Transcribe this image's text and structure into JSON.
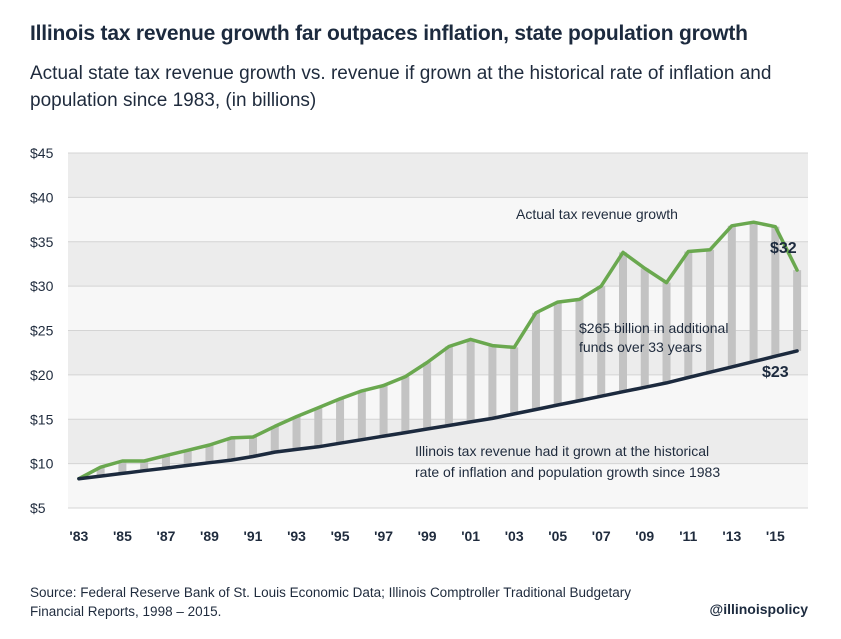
{
  "title": "Illinois tax revenue growth far outpaces inflation, state population growth",
  "subtitle": "Actual state tax revenue growth vs. revenue if grown at the historical rate of inflation and population since 1983, (in billions)",
  "source": "Source: Federal Reserve Bank of St. Louis Economic Data; Illinois Comptroller Traditional Budgetary Financial Reports, 1998 – 2015.",
  "handle": "@illinoispolicy",
  "chart_data": {
    "type": "line",
    "x": [
      1983,
      1984,
      1985,
      1986,
      1987,
      1988,
      1989,
      1990,
      1991,
      1992,
      1993,
      1994,
      1995,
      1996,
      1997,
      1998,
      1999,
      2000,
      2001,
      2002,
      2003,
      2004,
      2005,
      2006,
      2007,
      2008,
      2009,
      2010,
      2011,
      2012,
      2013,
      2014,
      2015,
      2016
    ],
    "x_tick_labels": [
      "'83",
      "'85",
      "'87",
      "'89",
      "'91",
      "'93",
      "'95",
      "'97",
      "'99",
      "'01",
      "'03",
      "'05",
      "'07",
      "'09",
      "'11",
      "'13",
      "'15"
    ],
    "x_tick_years": [
      1983,
      1985,
      1987,
      1989,
      1991,
      1993,
      1995,
      1997,
      1999,
      2001,
      2003,
      2005,
      2007,
      2009,
      2011,
      2013,
      2015
    ],
    "y_ticks": [
      "$5",
      "$10",
      "$15",
      "$20",
      "$25",
      "$30",
      "$35",
      "$40",
      "$45"
    ],
    "y_tick_values": [
      5,
      10,
      15,
      20,
      25,
      30,
      35,
      40,
      45
    ],
    "ylim": [
      5,
      45
    ],
    "xlim": [
      1982.5,
      2016.5
    ],
    "banded_background": true,
    "series": [
      {
        "color": "#6aa84f",
        "values": [
          8.3,
          9.6,
          10.3,
          10.3,
          10.9,
          11.5,
          12.1,
          12.9,
          13.0,
          14.2,
          15.3,
          16.3,
          17.3,
          18.2,
          18.8,
          19.8,
          21.4,
          23.2,
          24.0,
          23.3,
          23.1,
          27.0,
          28.2,
          28.5,
          30.0,
          33.8,
          32.0,
          30.4,
          33.9,
          34.1,
          36.8,
          37.2,
          36.7,
          31.8
        ]
      },
      {
        "color": "#1c2a3e",
        "values": [
          8.3,
          8.6,
          8.9,
          9.2,
          9.5,
          9.8,
          10.1,
          10.4,
          10.8,
          11.3,
          11.6,
          11.9,
          12.3,
          12.7,
          13.1,
          13.5,
          13.9,
          14.3,
          14.7,
          15.1,
          15.6,
          16.1,
          16.6,
          17.1,
          17.6,
          18.1,
          18.6,
          19.1,
          19.7,
          20.3,
          20.9,
          21.5,
          22.1,
          22.7
        ]
      }
    ],
    "annotations": {
      "actual_label": "Actual tax revenue growth",
      "gap_line1": "$265 billion in additional",
      "gap_line2": "funds over 33 years",
      "hist_line1": "Illinois tax revenue had it grown at the historical",
      "hist_line2": "rate of inflation and population growth since 1983",
      "end_actual": "$32",
      "end_hist": "$23"
    }
  }
}
